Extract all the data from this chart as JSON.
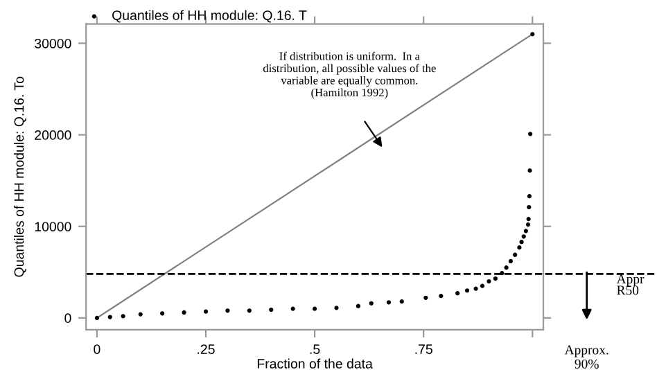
{
  "chart_data": {
    "type": "scatter",
    "xlabel": "Fraction of the data",
    "ylabel": "Quantiles of HH module: Q.16. To",
    "xlim": [
      -0.025,
      1.025
    ],
    "ylim": [
      -1280,
      32100
    ],
    "xticks": [
      {
        "value": 0,
        "label": "0"
      },
      {
        "value": 0.25,
        "label": ".25"
      },
      {
        "value": 0.5,
        "label": ".5"
      },
      {
        "value": 0.75,
        "label": ".75"
      },
      {
        "value": 1,
        "label": null
      }
    ],
    "yticks": [
      0,
      10000,
      20000,
      30000
    ],
    "grid": false,
    "legend": "top",
    "series": [
      {
        "name": "Quantiles of HH module: Q.16. T",
        "color": "#000000",
        "marker": "circle",
        "x": [
          0,
          0.03,
          0.06,
          0.1,
          0.15,
          0.2,
          0.25,
          0.3,
          0.35,
          0.4,
          0.45,
          0.5,
          0.55,
          0.6,
          0.63,
          0.67,
          0.7,
          0.755,
          0.79,
          0.828,
          0.85,
          0.87,
          0.885,
          0.9,
          0.915,
          0.93,
          0.94,
          0.95,
          0.96,
          0.97,
          0.975,
          0.98,
          0.985,
          0.99,
          0.991,
          0.992,
          0.993,
          0.994,
          0.995,
          0.996,
          0.997,
          1
        ],
        "values": [
          0,
          100,
          200,
          400,
          500,
          600,
          700,
          800,
          800,
          900,
          1000,
          1000,
          1100,
          1300,
          1600,
          1700,
          1800,
          2200,
          2400,
          2700,
          3000,
          3200,
          3500,
          4000,
          4300,
          4900,
          5500,
          6200,
          6900,
          7700,
          8300,
          8900,
          9500,
          10200,
          10800,
          12100,
          13300,
          16100,
          20100,
          null,
          null,
          31000
        ]
      },
      {
        "type": "line",
        "color": "#808080",
        "marker": "none",
        "x": [
          0,
          1
        ],
        "values": [
          0,
          31000
        ]
      }
    ],
    "ref_lines": [
      {
        "axis": "y",
        "value": 4800,
        "label": "Appr\nR50",
        "line_style": "dashed",
        "color": "#000000"
      }
    ],
    "annotations": [
      "If distribution is uniform.  In a\ndistribution, all possible values of the\nvariable are equally common.\n(Hamilton 1992)",
      "Approx.\n90%"
    ]
  }
}
